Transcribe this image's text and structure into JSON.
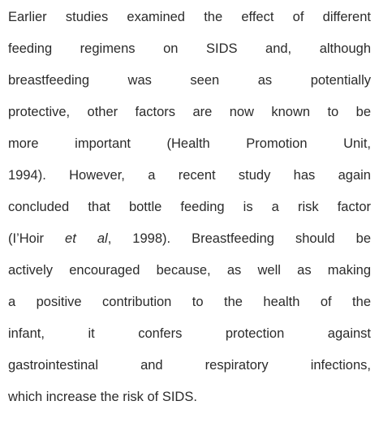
{
  "paragraph": {
    "lines": [
      [
        "Earlier studies examined the effect of different"
      ],
      [
        "feeding regimens on SIDS and, although"
      ],
      [
        "breastfeeding was seen as potentially"
      ],
      [
        "protective, other factors are now known to be"
      ],
      [
        "more important (Health Promotion Unit,"
      ],
      [
        "1994). However, a recent study has again"
      ],
      [
        "concluded that bottle feeding is a risk factor"
      ],
      [
        "(I’Hoir ",
        "et al",
        ", 1998). Breastfeeding should be"
      ],
      [
        "actively encouraged because, as well as making"
      ],
      [
        "a positive contribution to the health of the"
      ],
      [
        "infant, it confers protection against"
      ],
      [
        "gastrointestinal and respiratory infections,"
      ],
      [
        "which increase the risk of SIDS."
      ]
    ]
  }
}
